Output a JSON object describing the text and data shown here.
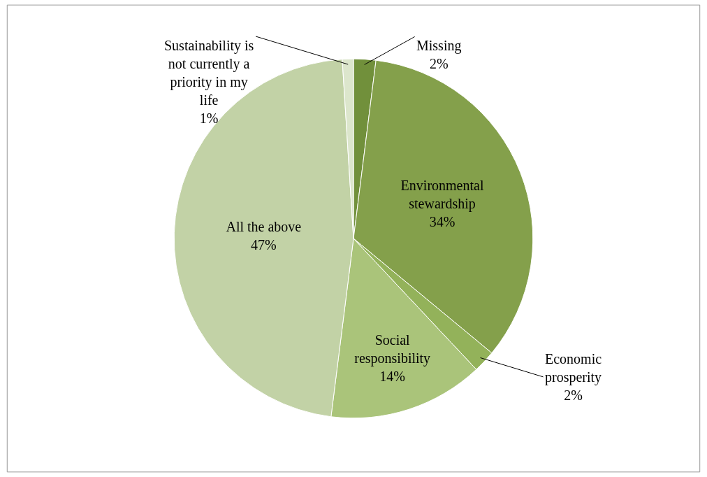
{
  "chart_data": {
    "type": "pie",
    "categories": [
      "Missing",
      "Environmental stewardship",
      "Economic prosperity",
      "Social responsibility",
      "All the above",
      "Sustainability is not currently a priority in my life"
    ],
    "values": [
      2,
      34,
      2,
      14,
      47,
      1
    ],
    "value_labels": [
      "2%",
      "34%",
      "2%",
      "14%",
      "47%",
      "1%"
    ],
    "colors": [
      "#71903b",
      "#84a04b",
      "#93b25a",
      "#aac47a",
      "#c2d2a6",
      "#dce6cc"
    ],
    "legend": false
  }
}
